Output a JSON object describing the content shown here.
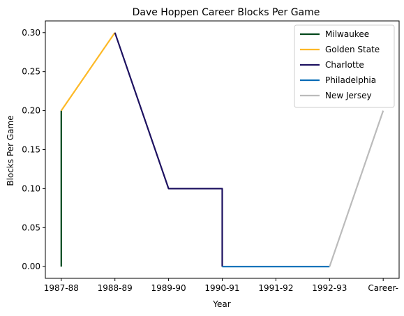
{
  "chart_data": {
    "type": "line",
    "title": "Dave Hoppen Career Blocks Per Game",
    "xlabel": "Year",
    "ylabel": "Blocks Per Game",
    "categories": [
      "1987-88",
      "1988-89",
      "1989-90",
      "1990-91",
      "1991-92",
      "1992-93",
      "Career-"
    ],
    "ylim": [
      -0.015,
      0.315
    ],
    "yticks": [
      0.0,
      0.05,
      0.1,
      0.15,
      0.2,
      0.25,
      0.3
    ],
    "ytick_labels": [
      "0.00",
      "0.05",
      "0.10",
      "0.15",
      "0.20",
      "0.25",
      "0.30"
    ],
    "grid": false,
    "legend_position": "top-right",
    "series": [
      {
        "name": "Milwaukee",
        "color": "#00471B",
        "points": [
          [
            0,
            0.0
          ],
          [
            0,
            0.2
          ]
        ]
      },
      {
        "name": "Golden State",
        "color": "#FDB927",
        "points": [
          [
            0,
            0.2
          ],
          [
            1,
            0.3
          ]
        ]
      },
      {
        "name": "Charlotte",
        "color": "#1D1160",
        "points": [
          [
            1,
            0.3
          ],
          [
            2,
            0.1
          ],
          [
            3,
            0.1
          ],
          [
            3,
            0.0
          ]
        ]
      },
      {
        "name": "Philadelphia",
        "color": "#006BB6",
        "points": [
          [
            3,
            0.0
          ],
          [
            5,
            0.0
          ]
        ]
      },
      {
        "name": "New Jersey",
        "color": "#BBBBBB",
        "points": [
          [
            5,
            0.0
          ],
          [
            6,
            0.2
          ]
        ]
      }
    ]
  }
}
